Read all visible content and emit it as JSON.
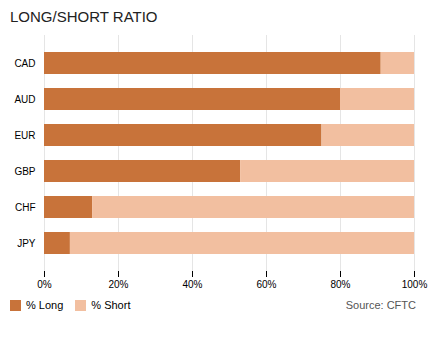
{
  "chart_data": {
    "type": "bar",
    "title": "LONG/SHORT RATIO",
    "orientation": "horizontal",
    "stacked": true,
    "categories": [
      "CAD",
      "AUD",
      "EUR",
      "GBP",
      "CHF",
      "JPY"
    ],
    "series": [
      {
        "name": "% Long",
        "color": "#C8733A",
        "values": [
          91,
          80,
          75,
          53,
          13,
          7
        ]
      },
      {
        "name": "% Short",
        "color": "#F2BFA0",
        "values": [
          9,
          20,
          25,
          47,
          87,
          93
        ]
      }
    ],
    "xlim": [
      0,
      100
    ],
    "xticks": [
      {
        "value": 0,
        "label": "0%"
      },
      {
        "value": 20,
        "label": "20%"
      },
      {
        "value": 40,
        "label": "40%"
      },
      {
        "value": 60,
        "label": "60%"
      },
      {
        "value": 80,
        "label": "80%"
      },
      {
        "value": 100,
        "label": "100%"
      }
    ],
    "grid": true,
    "legend": "bottom",
    "annotations": [
      "Source: CFTC"
    ]
  }
}
